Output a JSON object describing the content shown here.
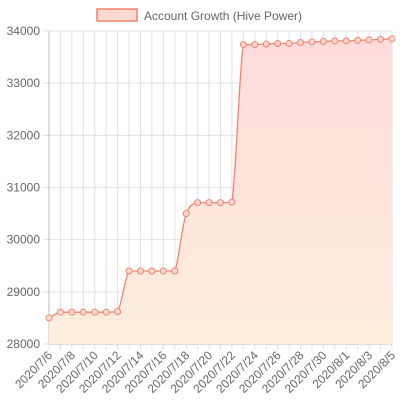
{
  "chart_data": {
    "type": "line",
    "title": "",
    "xlabel": "",
    "ylabel": "",
    "grid": true,
    "legend_position": "top-center",
    "ylim": [
      28000,
      34000
    ],
    "yticks": [
      28000,
      29000,
      30000,
      31000,
      32000,
      33000,
      34000
    ],
    "colors": {
      "line": "#f4836b",
      "fill_top": "#ffdcdc",
      "fill_bottom": "#fdeedd",
      "legend_fill": "#ffd9d4"
    },
    "x": [
      "2020/7/6",
      "2020/7/7",
      "2020/7/8",
      "2020/7/9",
      "2020/7/10",
      "2020/7/11",
      "2020/7/12",
      "2020/7/13",
      "2020/7/14",
      "2020/7/15",
      "2020/7/16",
      "2020/7/17",
      "2020/7/18",
      "2020/7/19",
      "2020/7/20",
      "2020/7/21",
      "2020/7/22",
      "2020/7/23",
      "2020/7/24",
      "2020/7/25",
      "2020/7/26",
      "2020/7/27",
      "2020/7/28",
      "2020/7/29",
      "2020/7/30",
      "2020/7/31",
      "2020/8/1",
      "2020/8/2",
      "2020/8/3",
      "2020/8/4",
      "2020/8/5"
    ],
    "xtick_labels": [
      "2020/7/6",
      "2020/7/8",
      "2020/7/10",
      "2020/7/12",
      "2020/7/14",
      "2020/7/16",
      "2020/7/18",
      "2020/7/20",
      "2020/7/22",
      "2020/7/24",
      "2020/7/26",
      "2020/7/28",
      "2020/7/30",
      "2020/8/1",
      "2020/8/3",
      "2020/8/5"
    ],
    "series": [
      {
        "name": "Account Growth (Hive Power)",
        "values": [
          28500,
          28610,
          28610,
          28610,
          28610,
          28610,
          28620,
          29400,
          29400,
          29400,
          29400,
          29400,
          30500,
          30710,
          30710,
          30710,
          30720,
          33740,
          33740,
          33750,
          33760,
          33760,
          33780,
          33790,
          33800,
          33810,
          33810,
          33820,
          33830,
          33840,
          33850
        ]
      }
    ]
  }
}
